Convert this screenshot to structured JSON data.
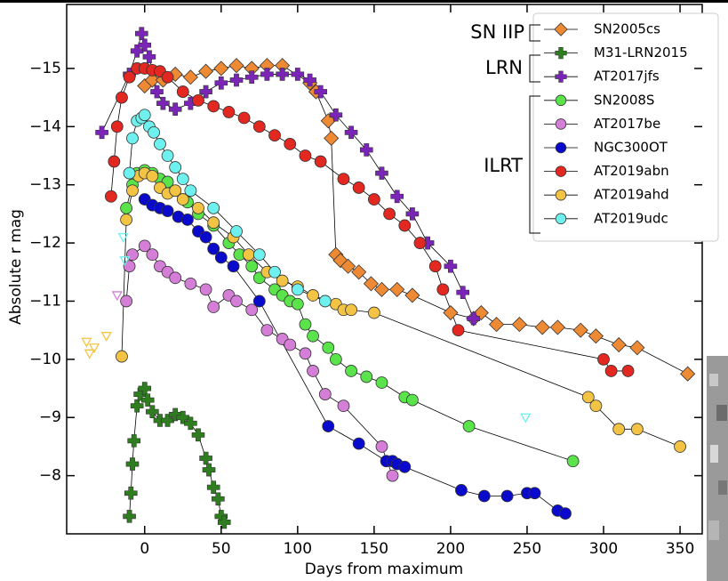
{
  "chart_data": {
    "type": "scatter",
    "x_label": "Days from maximum",
    "y_label": "Absolute r mag",
    "xlim": [
      -51,
      364.5
    ],
    "ylim": [
      -7.0,
      -16.1
    ],
    "xticks": [
      0,
      50,
      100,
      150,
      200,
      250,
      300,
      350
    ],
    "yticks": [
      {
        "value": -8,
        "label": "−8"
      },
      {
        "value": -9,
        "label": "−9"
      },
      {
        "value": -10,
        "label": "−10"
      },
      {
        "value": -11,
        "label": "−11"
      },
      {
        "value": -12,
        "label": "−12"
      },
      {
        "value": -13,
        "label": "−13"
      },
      {
        "value": -14,
        "label": "−14"
      },
      {
        "value": -15,
        "label": "−15"
      }
    ],
    "legend": "upper right",
    "annotations": [
      "SN IIP",
      "LRN",
      "ILRT"
    ],
    "series": [
      {
        "name": "SN2005cs",
        "color": "#ee8a33",
        "marker": "diamond",
        "x": [
          0,
          5,
          12,
          20,
          30,
          40,
          50,
          60,
          70,
          80,
          90,
          108,
          112,
          120,
          122,
          125,
          128,
          133,
          140,
          148,
          155,
          165,
          175,
          200,
          215,
          220,
          230,
          245,
          260,
          270,
          285,
          295,
          310,
          322,
          355
        ],
        "values": [
          -14.7,
          -14.8,
          -14.8,
          -14.9,
          -14.85,
          -14.95,
          -15,
          -15.05,
          -15,
          -15.05,
          -15.05,
          -14.75,
          -14.6,
          -14.1,
          -13.8,
          -11.8,
          -11.7,
          -11.6,
          -11.5,
          -11.3,
          -11.2,
          -11.2,
          -11.1,
          -10.8,
          -10.7,
          -10.8,
          -10.6,
          -10.6,
          -10.55,
          -10.55,
          -10.5,
          -10.4,
          -10.25,
          -10.2,
          -9.75
        ]
      },
      {
        "name": "M31-LRN2015",
        "color": "#2e7d1e",
        "marker": "plus",
        "x": [
          -10,
          -9,
          -8,
          -7,
          -5,
          -3,
          0,
          2,
          5,
          10,
          15,
          20,
          25,
          30,
          35,
          40,
          42,
          45,
          48,
          50,
          52
        ],
        "values": [
          -7.3,
          -7.7,
          -8.2,
          -8.6,
          -9.2,
          -9.4,
          -9.5,
          -9.3,
          -9.1,
          -8.95,
          -8.95,
          -9.05,
          -9.0,
          -8.9,
          -8.7,
          -8.3,
          -8.1,
          -7.8,
          -7.6,
          -7.3,
          -7.2
        ]
      },
      {
        "name": "AT2017jfs",
        "color": "#7b24b8",
        "marker": "plus",
        "x": [
          -28,
          -10,
          -5,
          -2,
          0,
          3,
          8,
          12,
          20,
          30,
          40,
          50,
          60,
          70,
          80,
          90,
          100,
          108,
          115,
          125,
          135,
          145,
          155,
          165,
          175,
          185,
          200,
          208,
          215
        ],
        "values": [
          -13.9,
          -14.9,
          -15.3,
          -15.6,
          -15.4,
          -15.2,
          -14.6,
          -14.4,
          -14.3,
          -14.4,
          -14.6,
          -14.75,
          -14.8,
          -14.85,
          -14.9,
          -14.9,
          -14.9,
          -14.8,
          -14.6,
          -14.2,
          -13.9,
          -13.6,
          -13.2,
          -12.8,
          -12.5,
          -12.0,
          -11.6,
          -11.15,
          -10.7
        ]
      },
      {
        "name": "SN2008S",
        "color": "#5ae34a",
        "marker": "circle",
        "x": [
          -12,
          -8,
          -5,
          0,
          5,
          10,
          15,
          20,
          28,
          35,
          45,
          55,
          62,
          70,
          75,
          85,
          90,
          95,
          100,
          105,
          110,
          120,
          125,
          135,
          145,
          155,
          170,
          175,
          212,
          280
        ],
        "values": [
          -12.6,
          -13.0,
          -13.2,
          -13.25,
          -13.2,
          -13.1,
          -13.05,
          -12.9,
          -12.7,
          -12.5,
          -12.3,
          -12.0,
          -11.8,
          -11.6,
          -11.4,
          -11.2,
          -11.1,
          -11.0,
          -10.95,
          -10.6,
          -10.4,
          -10.2,
          -10.0,
          -9.8,
          -9.7,
          -9.6,
          -9.35,
          -9.3,
          -8.85,
          -8.25
        ]
      },
      {
        "name": "AT2017be",
        "color": "#d57ed8",
        "marker": "circle",
        "x": [
          -12,
          -10,
          -8,
          0,
          5,
          10,
          15,
          20,
          30,
          40,
          45,
          55,
          60,
          70,
          80,
          90,
          95,
          105,
          110,
          118,
          130,
          155,
          162
        ],
        "values": [
          -11.0,
          -11.6,
          -11.8,
          -11.95,
          -11.8,
          -11.6,
          -11.5,
          -11.4,
          -11.3,
          -11.2,
          -10.9,
          -11.1,
          -11.0,
          -10.85,
          -10.5,
          -10.35,
          -10.25,
          -10.1,
          -9.8,
          -9.4,
          -9.2,
          -8.5,
          -8.0
        ],
        "upper_limits": {
          "x": [
            -18
          ],
          "values": [
            -11.1
          ]
        }
      },
      {
        "name": "NGC300OT",
        "color": "#0a0acc",
        "marker": "circle",
        "x": [
          0,
          5,
          10,
          15,
          22,
          28,
          35,
          40,
          45,
          50,
          58,
          75,
          120,
          140,
          158,
          162,
          165,
          170,
          207,
          222,
          237,
          250,
          255,
          270,
          275
        ],
        "values": [
          -12.75,
          -12.65,
          -12.6,
          -12.55,
          -12.45,
          -12.4,
          -12.2,
          -12.1,
          -11.9,
          -11.75,
          -11.6,
          -11.0,
          -8.85,
          -8.55,
          -8.25,
          -8.25,
          -8.2,
          -8.15,
          -7.75,
          -7.65,
          -7.65,
          -7.7,
          -7.7,
          -7.4,
          -7.35
        ]
      },
      {
        "name": "AT2019abn",
        "color": "#e22820",
        "marker": "circle",
        "x": [
          -22,
          -20,
          -18,
          -15,
          -10,
          -5,
          0,
          5,
          10,
          15,
          25,
          35,
          45,
          55,
          65,
          75,
          85,
          95,
          105,
          115,
          130,
          140,
          150,
          160,
          170,
          180,
          190,
          195,
          205,
          300,
          305,
          316
        ],
        "values": [
          -12.8,
          -13.4,
          -14.0,
          -14.5,
          -14.85,
          -15.0,
          -15.0,
          -14.97,
          -14.95,
          -14.85,
          -14.6,
          -14.45,
          -14.35,
          -14.25,
          -14.15,
          -14.0,
          -13.85,
          -13.7,
          -13.5,
          -13.4,
          -13.1,
          -12.95,
          -12.75,
          -12.5,
          -12.3,
          -12.0,
          -11.6,
          -11.2,
          -10.5,
          -10.0,
          -9.8,
          -9.8
        ]
      },
      {
        "name": "AT2019ahd",
        "color": "#f3c444",
        "marker": "circle",
        "x": [
          -15,
          -12,
          -8,
          -4,
          0,
          5,
          10,
          15,
          20,
          25,
          35,
          45,
          58,
          68,
          80,
          90,
          100,
          110,
          125,
          130,
          135,
          150,
          290,
          295,
          310,
          322,
          350
        ],
        "values": [
          -10.05,
          -12.4,
          -12.9,
          -13.15,
          -13.2,
          -13.15,
          -12.95,
          -12.85,
          -12.9,
          -12.75,
          -12.6,
          -12.35,
          -12.1,
          -11.8,
          -11.5,
          -11.35,
          -11.25,
          -11.1,
          -10.95,
          -10.85,
          -10.85,
          -10.8,
          -9.35,
          -9.2,
          -8.8,
          -8.8,
          -8.5
        ],
        "upper_limits": {
          "x": [
            -38,
            -36,
            -33,
            -25
          ],
          "values": [
            -10.3,
            -10.1,
            -10.2,
            -10.4
          ]
        }
      },
      {
        "name": "AT2019udc",
        "color": "#6ef0ee",
        "marker": "circle",
        "x": [
          -10,
          -8,
          -5,
          -2,
          0,
          3,
          6,
          10,
          15,
          20,
          25,
          30,
          45,
          60,
          75,
          85,
          100,
          118
        ],
        "values": [
          -13.2,
          -13.8,
          -14.1,
          -14.15,
          -14.2,
          -14.0,
          -13.9,
          -13.7,
          -13.5,
          -13.3,
          -13.1,
          -12.9,
          -12.6,
          -12.2,
          -11.8,
          -11.5,
          -11.2,
          -11.0
        ],
        "upper_limits": {
          "x": [
            -14,
            -13,
            249
          ],
          "values": [
            -12.1,
            -11.7,
            -9.0
          ]
        }
      }
    ]
  }
}
